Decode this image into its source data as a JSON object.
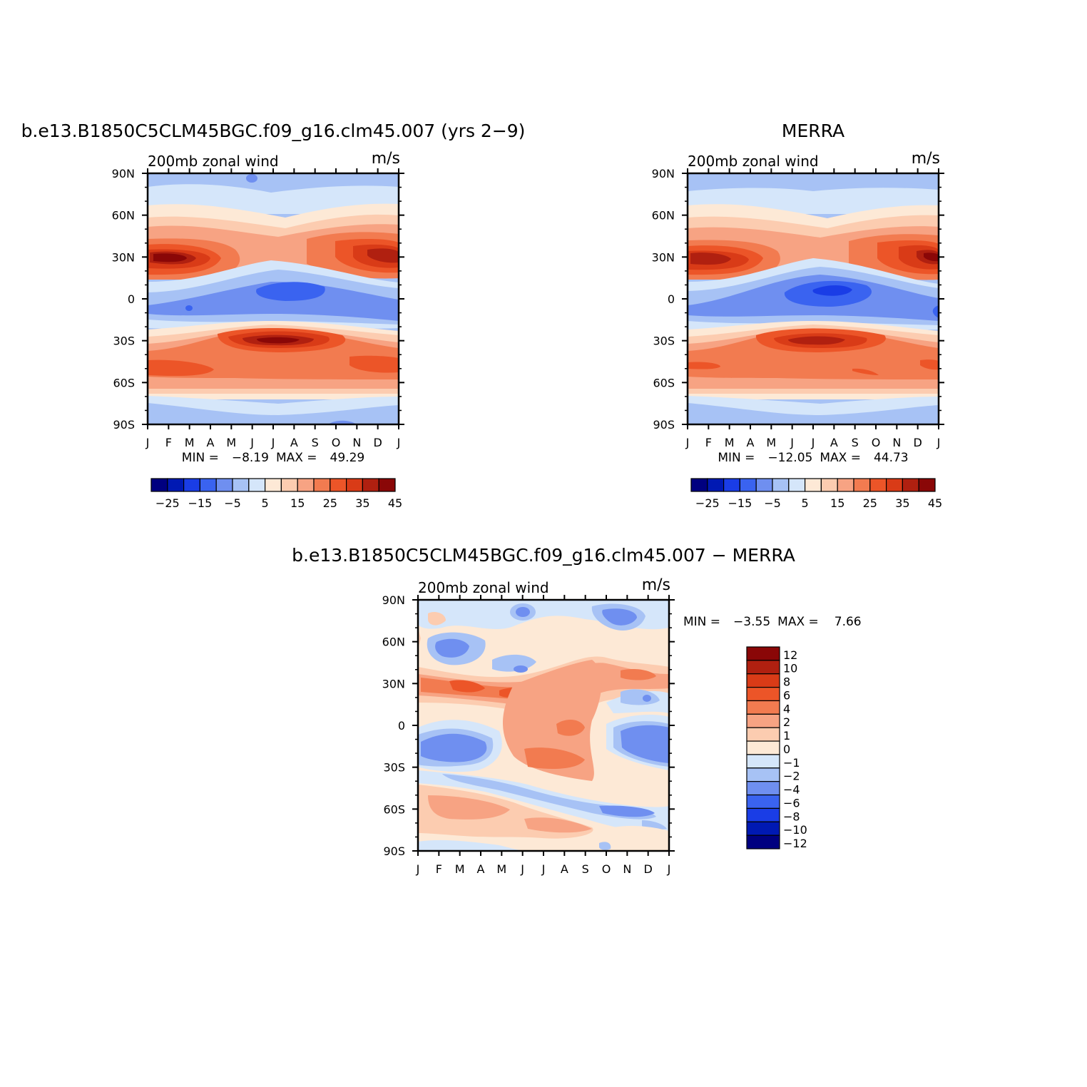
{
  "figure": {
    "panels_titles": {
      "model": "b.e13.B1850C5CLM45BGC.f09_g16.clm45.007 (yrs 2−9)",
      "obs": "MERRA",
      "diff": "b.e13.B1850C5CLM45BGC.f09_g16.clm45.007 − MERRA"
    }
  },
  "chart_data": [
    {
      "type": "heatmap",
      "title": "b.e13.B1850C5CLM45BGC.f09_g16.clm45.007 (yrs 2−9)",
      "left_string": "200mb zonal wind",
      "right_string": "m/s",
      "x_ticks": [
        "J",
        "F",
        "M",
        "A",
        "M",
        "J",
        "J",
        "A",
        "S",
        "O",
        "N",
        "D",
        "J"
      ],
      "y_ticks": [
        "90N",
        "60N",
        "30N",
        "0",
        "30S",
        "60S",
        "90S"
      ],
      "y_range": [
        -90,
        90
      ],
      "stats": {
        "min_label": "MIN =",
        "min": "−8.19",
        "max_label": "MAX =",
        "max": "49.29"
      },
      "colorbar": {
        "orientation": "horizontal",
        "tick_labels": [
          "−25",
          "−15",
          "−5",
          "5",
          "15",
          "25",
          "35",
          "45"
        ],
        "colors": [
          "#000080",
          "#0019b3",
          "#1a3de6",
          "#3a63f0",
          "#6f8ff0",
          "#a7c2f5",
          "#d5e6fa",
          "#fde9d6",
          "#fcccb0",
          "#f7a383",
          "#f27b50",
          "#ec5528",
          "#d93b17",
          "#b02010",
          "#8a0707"
        ]
      },
      "features": {
        "nh_jet_max": {
          "month": "Mar",
          "lat": 30,
          "value": "45+"
        },
        "sh_jet_max": {
          "month": "Jul",
          "lat": -28,
          "value": "45+"
        },
        "equatorial_min": {
          "month": "Jul",
          "lat": 5,
          "value": "−5 to −8"
        }
      }
    },
    {
      "type": "heatmap",
      "title": "MERRA",
      "left_string": "200mb zonal wind",
      "right_string": "m/s",
      "x_ticks": [
        "J",
        "F",
        "M",
        "A",
        "M",
        "J",
        "J",
        "A",
        "S",
        "O",
        "N",
        "D",
        "J"
      ],
      "y_ticks": [
        "90N",
        "60N",
        "30N",
        "0",
        "30S",
        "60S",
        "90S"
      ],
      "y_range": [
        -90,
        90
      ],
      "stats": {
        "min_label": "MIN =",
        "min": "−12.05",
        "max_label": "MAX =",
        "max": "44.73"
      },
      "colorbar": {
        "orientation": "horizontal",
        "tick_labels": [
          "−25",
          "−15",
          "−5",
          "5",
          "15",
          "25",
          "35",
          "45"
        ],
        "colors": [
          "#000080",
          "#0019b3",
          "#1a3de6",
          "#3a63f0",
          "#6f8ff0",
          "#a7c2f5",
          "#d5e6fa",
          "#fde9d6",
          "#fcccb0",
          "#f7a383",
          "#f27b50",
          "#ec5528",
          "#d93b17",
          "#b02010",
          "#8a0707"
        ]
      }
    },
    {
      "type": "heatmap",
      "title": "b.e13.B1850C5CLM45BGC.f09_g16.clm45.007 − MERRA",
      "left_string": "200mb zonal wind",
      "right_string": "m/s",
      "x_ticks": [
        "J",
        "F",
        "M",
        "A",
        "M",
        "J",
        "J",
        "A",
        "S",
        "O",
        "N",
        "D",
        "J"
      ],
      "y_ticks": [
        "90N",
        "60N",
        "30N",
        "0",
        "30S",
        "60S",
        "90S"
      ],
      "y_range": [
        -90,
        90
      ],
      "stats": {
        "min_label": "MIN =",
        "min": "−3.55",
        "max_label": "MAX =",
        "max": "7.66"
      },
      "colorbar": {
        "orientation": "vertical",
        "tick_labels": [
          "12",
          "10",
          "8",
          "6",
          "4",
          "2",
          "1",
          "0",
          "−1",
          "−2",
          "−4",
          "−6",
          "−8",
          "−10",
          "−12"
        ],
        "colors": [
          "#8a0707",
          "#b02010",
          "#d93b17",
          "#ec5528",
          "#f27b50",
          "#f7a383",
          "#fcccb0",
          "#fde9d6",
          "#d5e6fa",
          "#a7c2f5",
          "#6f8ff0",
          "#3a63f0",
          "#1a3de6",
          "#0019b3",
          "#000080"
        ]
      }
    }
  ]
}
